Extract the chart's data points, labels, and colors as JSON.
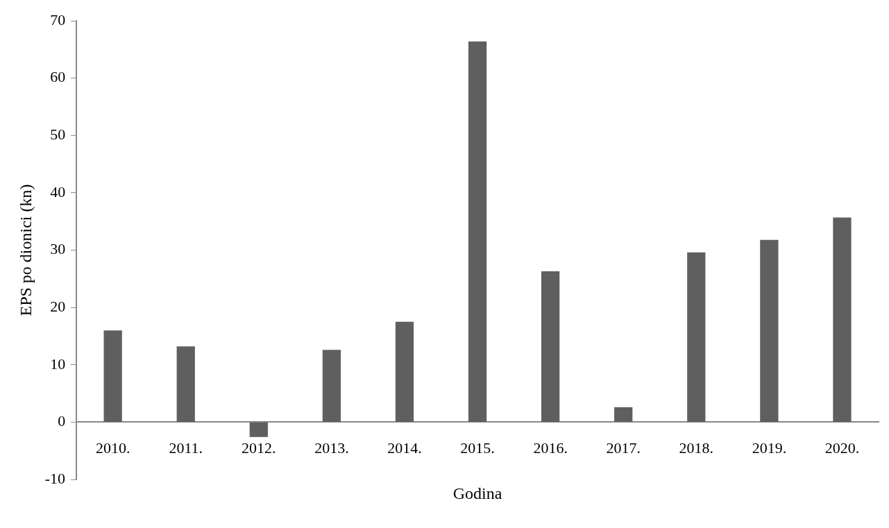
{
  "chart_data": {
    "type": "bar",
    "xlabel": "Godina",
    "ylabel": "EPS po dionici (kn)",
    "categories": [
      "2010.",
      "2011.",
      "2012.",
      "2013.",
      "2014.",
      "2015.",
      "2016.",
      "2017.",
      "2018.",
      "2019.",
      "2020."
    ],
    "values": [
      16.0,
      13.2,
      -2.6,
      12.6,
      17.5,
      66.4,
      26.3,
      2.6,
      29.6,
      31.8,
      35.7
    ],
    "color": "#5f5f5f",
    "ylim": [
      -10,
      70
    ],
    "yticks": [
      -10,
      0,
      10,
      20,
      30,
      40,
      50,
      60,
      70
    ],
    "grid": false,
    "legend": false
  }
}
